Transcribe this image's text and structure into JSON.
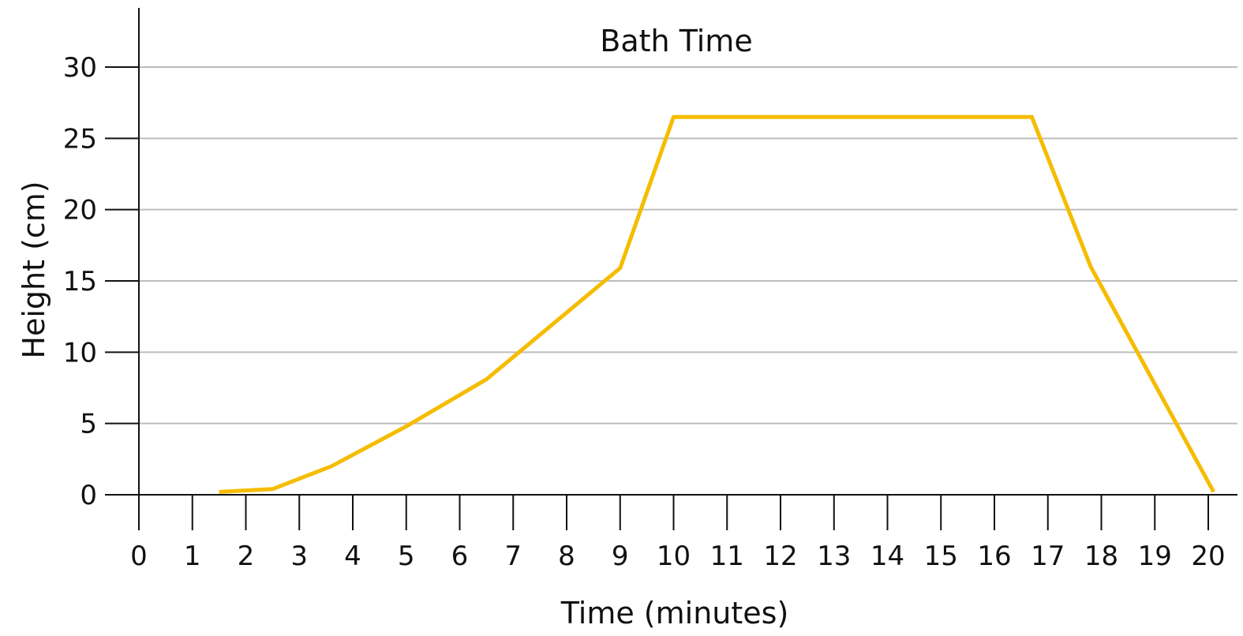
{
  "chart_data": {
    "type": "line",
    "title": "Bath Time",
    "xlabel": "Time (minutes)",
    "ylabel": "Height (cm)",
    "xlim": [
      0,
      20
    ],
    "ylim": [
      0,
      30
    ],
    "x_ticks": [
      0,
      1,
      2,
      3,
      4,
      5,
      6,
      7,
      8,
      9,
      10,
      11,
      12,
      13,
      14,
      15,
      16,
      17,
      18,
      19,
      20
    ],
    "x_tick_labels": [
      "0",
      "1",
      "2",
      "3",
      "4",
      "5",
      "6",
      "7",
      "8",
      "9",
      "10",
      "11",
      "12",
      "13",
      "14",
      "15",
      "16",
      "17",
      "18",
      "19",
      "20"
    ],
    "y_ticks": [
      0,
      5,
      10,
      15,
      20,
      25,
      30
    ],
    "y_tick_labels": [
      "0",
      "5",
      "10",
      "15",
      "20",
      "25",
      "30"
    ],
    "grid": "horizontal",
    "legend": "none",
    "series": [
      {
        "color": "#F5BC00",
        "x": [
          1.5,
          2.5,
          3.6,
          5.0,
          6.5,
          9.0,
          10.0,
          16.7,
          17.8,
          20.1
        ],
        "y": [
          0.2,
          0.4,
          2.0,
          4.8,
          8.1,
          15.9,
          26.5,
          26.5,
          16.0,
          0.2
        ]
      }
    ],
    "colors": {
      "line": "#F5BC00",
      "grid": "#BDBDBD",
      "axis": "#111111"
    }
  }
}
